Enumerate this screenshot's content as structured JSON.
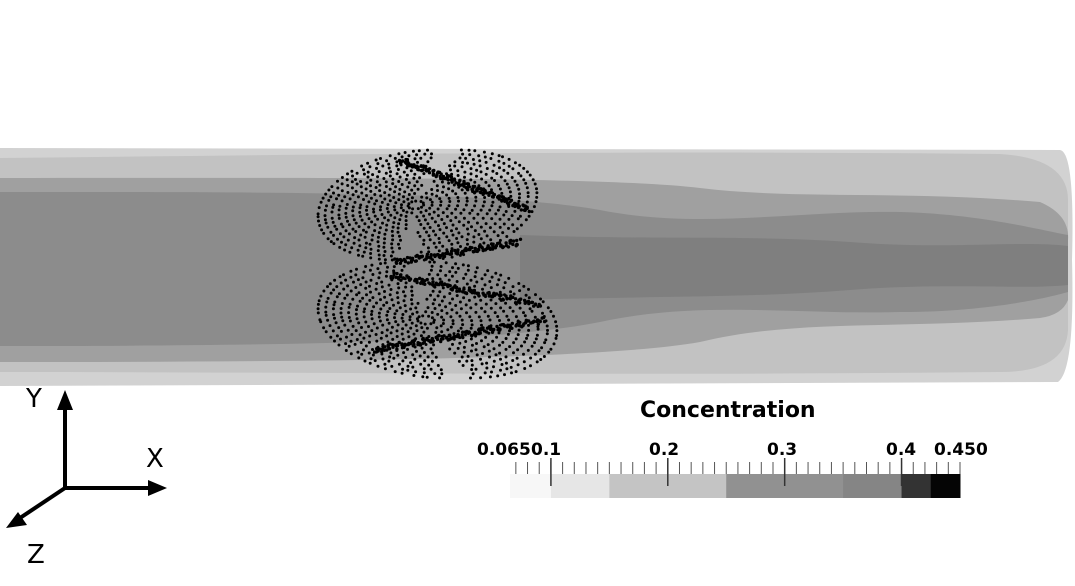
{
  "legend": {
    "title": "Concentration",
    "tick_labels": [
      "0.065",
      "0.1",
      "0.2",
      "0.3",
      "0.4",
      "0.450"
    ],
    "range": [
      0.065,
      0.45
    ],
    "bands": [
      {
        "from": 0.065,
        "to": 0.1,
        "color": "#f7f7f7"
      },
      {
        "from": 0.1,
        "to": 0.15,
        "color": "#e6e6e6"
      },
      {
        "from": 0.15,
        "to": 0.25,
        "color": "#c4c4c4"
      },
      {
        "from": 0.25,
        "to": 0.35,
        "color": "#919191"
      },
      {
        "from": 0.35,
        "to": 0.4,
        "color": "#858585"
      },
      {
        "from": 0.4,
        "to": 0.425,
        "color": "#333333"
      },
      {
        "from": 0.425,
        "to": 0.45,
        "color": "#050505"
      }
    ]
  },
  "axes": {
    "y": "Y",
    "x": "X",
    "z": "Z"
  }
}
